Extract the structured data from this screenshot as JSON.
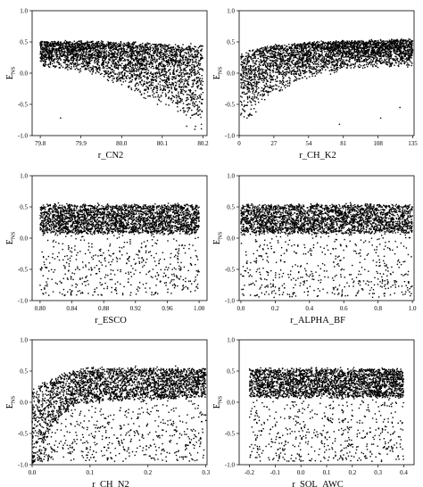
{
  "chart_data": [
    {
      "type": "scatter",
      "xlabel": "r_CN2",
      "ylabel_main": "E",
      "ylabel_sub": "NS",
      "xlim": [
        79.78,
        80.21
      ],
      "ylim": [
        -1.0,
        1.0
      ],
      "xticks": [
        79.8,
        79.9,
        80.0,
        80.1,
        80.2
      ],
      "xticklabels": [
        "79.8",
        "79.9",
        "80.0",
        "80.1",
        "80.2"
      ],
      "yticks": [
        -1.0,
        -0.5,
        0.0,
        0.5,
        1.0
      ],
      "yticklabels": [
        "-1.0",
        "-0.5",
        "0.0",
        "0.5",
        "1.0"
      ],
      "x_range": [
        79.8,
        80.2
      ],
      "upper_envelope": [
        [
          79.8,
          0.5
        ],
        [
          79.95,
          0.5
        ],
        [
          80.05,
          0.48
        ],
        [
          80.2,
          0.43
        ]
      ],
      "lower_envelope": [
        [
          79.8,
          0.08
        ],
        [
          79.9,
          0.02
        ],
        [
          80.0,
          -0.2
        ],
        [
          80.1,
          -0.55
        ],
        [
          80.2,
          -0.95
        ]
      ],
      "outliers": [
        [
          79.85,
          -0.72
        ],
        [
          80.18,
          -0.9
        ],
        [
          80.16,
          -0.85
        ]
      ]
    },
    {
      "type": "scatter",
      "xlabel": "r_CH_K2",
      "ylabel_main": "E",
      "ylabel_sub": "NS",
      "xlim": [
        0,
        136
      ],
      "ylim": [
        -1.0,
        1.0
      ],
      "xticks": [
        0,
        27,
        54,
        81,
        108,
        135
      ],
      "xticklabels": [
        "0",
        "27",
        "54",
        "81",
        "108",
        "135"
      ],
      "yticks": [
        -1.0,
        -0.5,
        0.0,
        0.5,
        1.0
      ],
      "yticklabels": [
        "-1.0",
        "-0.5",
        "0.0",
        "0.5",
        "1.0"
      ],
      "x_range": [
        1,
        135
      ],
      "upper_envelope": [
        [
          0,
          0.3
        ],
        [
          20,
          0.42
        ],
        [
          60,
          0.5
        ],
        [
          135,
          0.53
        ]
      ],
      "lower_envelope": [
        [
          0,
          -0.95
        ],
        [
          20,
          -0.45
        ],
        [
          50,
          -0.1
        ],
        [
          80,
          0.05
        ],
        [
          135,
          0.12
        ]
      ],
      "outliers": [
        [
          110,
          -0.72
        ],
        [
          78,
          -0.82
        ],
        [
          125,
          -0.55
        ]
      ]
    },
    {
      "type": "scatter",
      "xlabel": "r_ESCO",
      "ylabel_main": "E",
      "ylabel_sub": "NS",
      "xlim": [
        0.79,
        1.01
      ],
      "ylim": [
        -1.0,
        1.0
      ],
      "xticks": [
        0.8,
        0.84,
        0.88,
        0.92,
        0.96,
        1.0
      ],
      "xticklabels": [
        "0.80",
        "0.84",
        "0.88",
        "0.92",
        "0.96",
        "1.00"
      ],
      "yticks": [
        -1.0,
        -0.5,
        0.0,
        0.5,
        1.0
      ],
      "yticklabels": [
        "-1.0",
        "-0.5",
        "0.0",
        "0.5",
        "1.0"
      ],
      "x_range": [
        0.8,
        1.0
      ],
      "upper_envelope": [
        [
          0.8,
          0.53
        ],
        [
          1.0,
          0.53
        ]
      ],
      "lower_envelope": [
        [
          0.8,
          0.08
        ],
        [
          1.0,
          0.08
        ]
      ],
      "scatter_min": -0.92
    },
    {
      "type": "scatter",
      "xlabel": "r_ALPHA_BF",
      "ylabel_main": "E",
      "ylabel_sub": "NS",
      "xlim": [
        -0.01,
        1.01
      ],
      "ylim": [
        -1.0,
        1.0
      ],
      "xticks": [
        0.0,
        0.2,
        0.4,
        0.6,
        0.8,
        1.0
      ],
      "xticklabels": [
        "0.0",
        "0.2",
        "0.4",
        "0.6",
        "0.8",
        "1.0"
      ],
      "yticks": [
        -1.0,
        -0.5,
        0.0,
        0.5,
        1.0
      ],
      "yticklabels": [
        "-1.0",
        "-0.5",
        "0.0",
        "0.5",
        "1.0"
      ],
      "x_range": [
        0.0,
        1.0
      ],
      "upper_envelope": [
        [
          0.0,
          0.53
        ],
        [
          1.0,
          0.53
        ]
      ],
      "lower_envelope": [
        [
          0.0,
          0.08
        ],
        [
          1.0,
          0.08
        ]
      ],
      "scatter_min": -0.95
    },
    {
      "type": "scatter",
      "xlabel": "r_CH_N2",
      "ylabel_main": "E",
      "ylabel_sub": "NS",
      "xlim": [
        0.0,
        0.302
      ],
      "ylim": [
        -1.0,
        1.0
      ],
      "xticks": [
        0.0,
        0.1,
        0.2,
        0.3
      ],
      "xticklabels": [
        "0.0",
        "0.1",
        "0.2",
        "0.3"
      ],
      "yticks": [
        -1.0,
        -0.5,
        0.0,
        0.5,
        1.0
      ],
      "yticklabels": [
        "-1.0",
        "-0.5",
        "0.0",
        "0.5",
        "1.0"
      ],
      "x_range": [
        0.0,
        0.3
      ],
      "upper_envelope": [
        [
          0.0,
          0.2
        ],
        [
          0.05,
          0.45
        ],
        [
          0.1,
          0.55
        ],
        [
          0.3,
          0.53
        ]
      ],
      "lower_envelope": [
        [
          0.0,
          -1.0
        ],
        [
          0.04,
          -0.3
        ],
        [
          0.08,
          0.0
        ],
        [
          0.3,
          0.08
        ]
      ],
      "scatter_min": -0.95
    },
    {
      "type": "scatter",
      "xlabel": "r_SOL_AWC",
      "ylabel_main": "E",
      "ylabel_sub": "NS",
      "xlim": [
        -0.24,
        0.44
      ],
      "ylim": [
        -1.0,
        1.0
      ],
      "xticks": [
        -0.2,
        -0.1,
        0.0,
        0.1,
        0.2,
        0.3,
        0.4
      ],
      "xticklabels": [
        "-0.2",
        "-0.1",
        "0.0",
        "0.1",
        "0.2",
        "0.3",
        "0.4"
      ],
      "yticks": [
        -1.0,
        -0.5,
        0.0,
        0.5,
        1.0
      ],
      "yticklabels": [
        "-1.0",
        "-0.5",
        "0.0",
        "0.5",
        "1.0"
      ],
      "x_range": [
        -0.2,
        0.4
      ],
      "upper_envelope": [
        [
          -0.2,
          0.53
        ],
        [
          0.4,
          0.53
        ]
      ],
      "lower_envelope": [
        [
          -0.2,
          0.08
        ],
        [
          0.4,
          0.08
        ]
      ],
      "scatter_min": -0.95
    }
  ]
}
